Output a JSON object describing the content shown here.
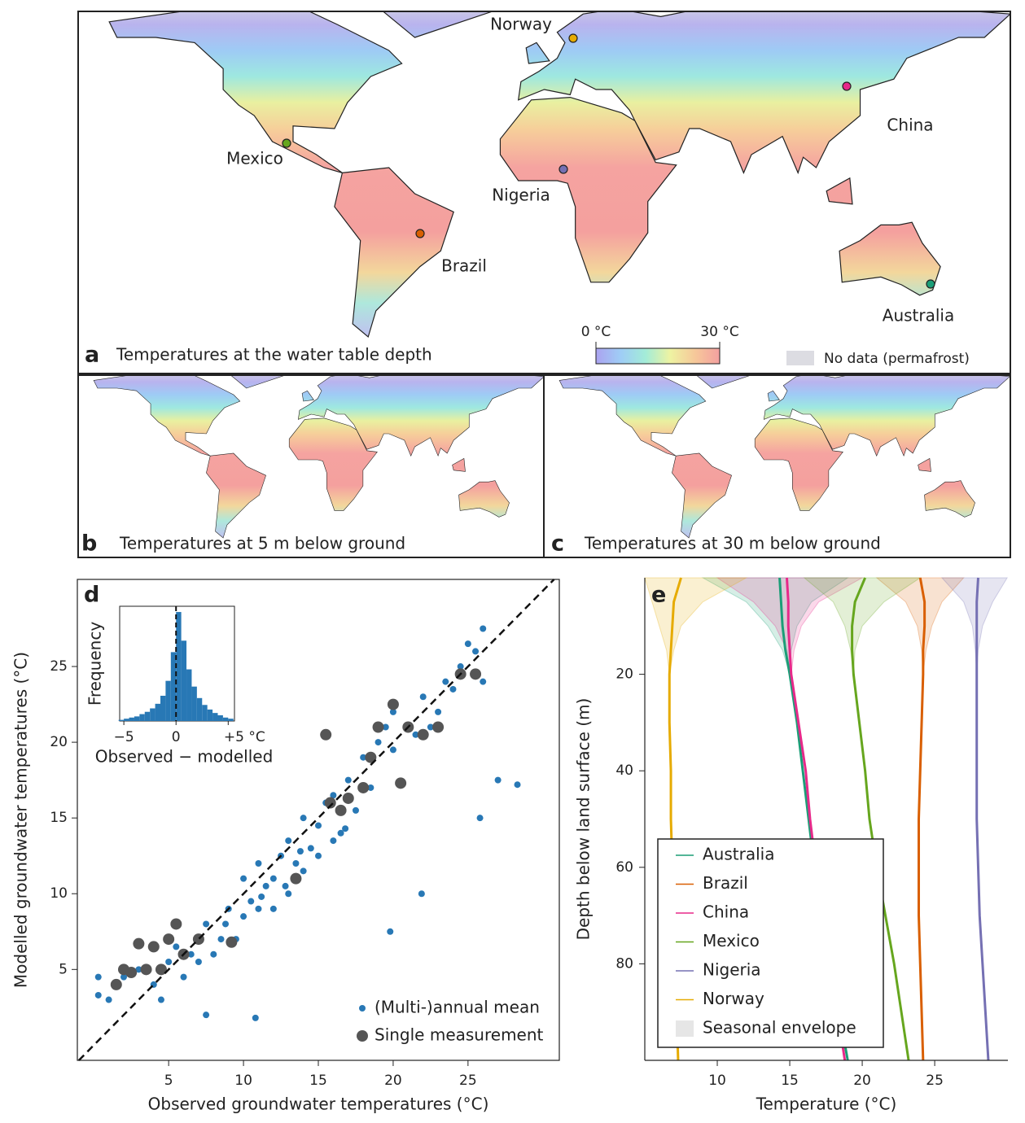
{
  "maps": [
    {
      "letter": "a",
      "title": "Temperatures at the water table depth"
    },
    {
      "letter": "b",
      "title": "Temperatures at 5 m below ground"
    },
    {
      "letter": "c",
      "title": "Temperatures at 30 m below ground"
    }
  ],
  "locations": [
    {
      "name": "Norway",
      "color": "#e6ab02"
    },
    {
      "name": "China",
      "color": "#e7298a"
    },
    {
      "name": "Mexico",
      "color": "#66a61e"
    },
    {
      "name": "Nigeria",
      "color": "#7570b3"
    },
    {
      "name": "Brazil",
      "color": "#d95f02"
    },
    {
      "name": "Australia",
      "color": "#1b9e77"
    }
  ],
  "colorbar": {
    "ticks": [
      {
        "value": 0,
        "label": "0 °C"
      },
      {
        "value": 30,
        "label": "30 °C"
      }
    ],
    "colors": [
      "#aba3f0",
      "#9fcdf6",
      "#a3ecd8",
      "#eef3a2",
      "#f6c89a",
      "#f4a0a0"
    ]
  },
  "no_data": {
    "label": "No data (permafrost)",
    "color": "#dcdce2"
  },
  "chart_data": [
    {
      "type": "scatter",
      "panel": "d",
      "xlabel": "Observed groundwater temperatures (°C)",
      "ylabel": "Modelled groundwater temperatures (°C)",
      "xlim": [
        -1.1,
        31.1
      ],
      "ylim": [
        -1.0,
        30.75
      ],
      "xticks": [
        5,
        10,
        15,
        20,
        25
      ],
      "yticks": [
        5,
        10,
        15,
        20,
        25
      ],
      "identity_line": true,
      "legend": "lower right",
      "series": [
        {
          "name": "(Multi-)annual mean",
          "color": "#2878b5",
          "size": 4,
          "x": [
            0.3,
            0.3,
            1,
            2,
            3,
            4,
            4.5,
            5,
            5.5,
            6,
            6.5,
            7,
            7.5,
            7.5,
            8,
            8.5,
            9,
            9.5,
            10,
            10,
            10.5,
            11,
            11,
            11.5,
            12,
            12,
            12.5,
            13,
            13,
            13.5,
            14,
            14,
            14.5,
            15,
            15,
            15.5,
            16,
            16,
            16.5,
            17,
            17.5,
            18,
            18.5,
            19,
            19.5,
            20,
            20,
            21,
            21.5,
            22,
            22.5,
            23,
            23.5,
            24,
            24.5,
            25,
            25.5,
            26,
            26,
            27,
            28.3,
            25.8,
            21.9,
            19.8,
            10.8,
            12.8,
            13.8,
            16.8,
            8.8,
            11.2
          ],
          "values": [
            3.3,
            4.5,
            3,
            4.5,
            5,
            4,
            3,
            5.5,
            6.5,
            4.5,
            6,
            5.5,
            2,
            8,
            6,
            7,
            9,
            7,
            8.5,
            11,
            9.5,
            9,
            12,
            10.5,
            11,
            9,
            12.5,
            10,
            13.5,
            12,
            11.5,
            15,
            13,
            12.5,
            14.5,
            16,
            13.5,
            16.5,
            14,
            17.5,
            15.5,
            19,
            17,
            20,
            21,
            19.5,
            22,
            21,
            20.5,
            23,
            21,
            22,
            24,
            23.5,
            25,
            26.5,
            26,
            24,
            27.5,
            17.5,
            17.2,
            15,
            10,
            7.5,
            1.8,
            10.5,
            12.8,
            14.3,
            8,
            9.8
          ]
        },
        {
          "name": "Single measurement",
          "color": "#555555",
          "size": 7,
          "x": [
            1.5,
            2,
            2.5,
            3,
            3.5,
            4,
            4.5,
            5,
            5.5,
            6,
            7,
            9.2,
            13.5,
            15.5,
            15.8,
            16.5,
            17,
            18,
            18.5,
            19,
            20,
            21,
            22,
            23,
            24.5,
            25.5,
            20.5
          ],
          "values": [
            4,
            5,
            4.8,
            6.7,
            5,
            6.5,
            5,
            7,
            8,
            6,
            7,
            6.8,
            11,
            20.5,
            16,
            15.5,
            16.3,
            17,
            19,
            21,
            22.5,
            21,
            20.5,
            21,
            24.5,
            24.5,
            17.3
          ]
        }
      ],
      "inset": {
        "type": "histogram",
        "ylabel": "Frequency",
        "xlabel": "Observed − modelled",
        "color": "#2878b5",
        "zero_line": true,
        "xlim": [
          -5.4,
          5.6
        ],
        "ylim": [
          0,
          100
        ],
        "xticks": [
          {
            "value": -5,
            "label": "−5"
          },
          0,
          {
            "value": 5,
            "label": "+5 °C"
          }
        ],
        "bins": [
          -5.5,
          -5,
          -4.5,
          -4,
          -3.5,
          -3,
          -2.5,
          -2,
          -1.5,
          -1,
          -0.5,
          0,
          0.5,
          1,
          1.5,
          2,
          2.5,
          3,
          3.5,
          4,
          4.5,
          5,
          5.5
        ],
        "counts": [
          1,
          2,
          3,
          4,
          6,
          8,
          11,
          15,
          22,
          35,
          60,
          95,
          70,
          45,
          30,
          20,
          14,
          10,
          7,
          5,
          3,
          2
        ]
      }
    },
    {
      "type": "profile",
      "panel": "e",
      "xlabel": "Temperature (°C)",
      "ylabel": "Depth below land surface (m)",
      "xlim": [
        5,
        30.05
      ],
      "ylim": [
        0,
        100
      ],
      "y_inverted": true,
      "xticks": [
        10,
        15,
        20,
        25
      ],
      "yticks": [
        20,
        40,
        60,
        80
      ],
      "legend": "lower left",
      "envelope_label": "Seasonal envelope",
      "depths": [
        0,
        5,
        10,
        15,
        20,
        30,
        40,
        50,
        60,
        70,
        80,
        90,
        100
      ],
      "envelope_depths": [
        0,
        5,
        10,
        15,
        20
      ],
      "series": [
        {
          "name": "Australia",
          "color": "#1b9e77",
          "values": [
            14.3,
            14.4,
            14.5,
            14.7,
            15.0,
            15.5,
            15.9,
            16.3,
            16.7,
            17.2,
            17.8,
            18.4,
            19.0
          ],
          "envelope_low": [
            9,
            12,
            13.5,
            14.5,
            15.0
          ],
          "envelope_high": [
            19,
            16.5,
            15.5,
            15.1,
            15.0
          ]
        },
        {
          "name": "Brazil",
          "color": "#d95f02",
          "values": [
            24.0,
            24.3,
            24.3,
            24.2,
            24.2,
            24.1,
            24.0,
            23.9,
            23.9,
            23.9,
            24.0,
            24.1,
            24.2
          ],
          "envelope_low": [
            21,
            23,
            23.8,
            24.1,
            24.2
          ],
          "envelope_high": [
            27,
            25.5,
            24.8,
            24.4,
            24.2
          ]
        },
        {
          "name": "China",
          "color": "#e7298a",
          "values": [
            14.8,
            14.9,
            14.9,
            15.0,
            15.1,
            15.6,
            16.1,
            16.4,
            16.8,
            17.3,
            17.8,
            18.3,
            18.8
          ],
          "envelope_low": [
            10,
            12.5,
            14,
            14.8,
            15.1
          ],
          "envelope_high": [
            20,
            17,
            15.8,
            15.3,
            15.1
          ]
        },
        {
          "name": "Mexico",
          "color": "#66a61e",
          "values": [
            20.2,
            19.5,
            19.3,
            19.3,
            19.4,
            19.8,
            20.2,
            20.5,
            21.0,
            21.6,
            22.2,
            22.7,
            23.2
          ],
          "envelope_low": [
            16,
            18,
            18.8,
            19.2,
            19.4
          ],
          "envelope_high": [
            24,
            21.5,
            20,
            19.5,
            19.4
          ]
        },
        {
          "name": "Nigeria",
          "color": "#7570b3",
          "values": [
            28.0,
            27.9,
            27.9,
            27.9,
            27.9,
            27.9,
            27.9,
            27.9,
            28.0,
            28.1,
            28.3,
            28.5,
            28.7
          ],
          "envelope_low": [
            25.5,
            27,
            27.6,
            27.8,
            27.9
          ],
          "envelope_high": [
            30,
            29,
            28.3,
            28,
            27.9
          ]
        },
        {
          "name": "Norway",
          "color": "#e6ab02",
          "values": [
            7.5,
            7.0,
            6.9,
            6.8,
            6.7,
            6.7,
            6.8,
            6.8,
            6.9,
            7.0,
            7.1,
            7.2,
            7.3
          ],
          "envelope_low": [
            5,
            5.5,
            6,
            6.5,
            6.7
          ],
          "envelope_high": [
            12,
            9,
            7.5,
            7,
            6.7
          ]
        }
      ]
    }
  ]
}
